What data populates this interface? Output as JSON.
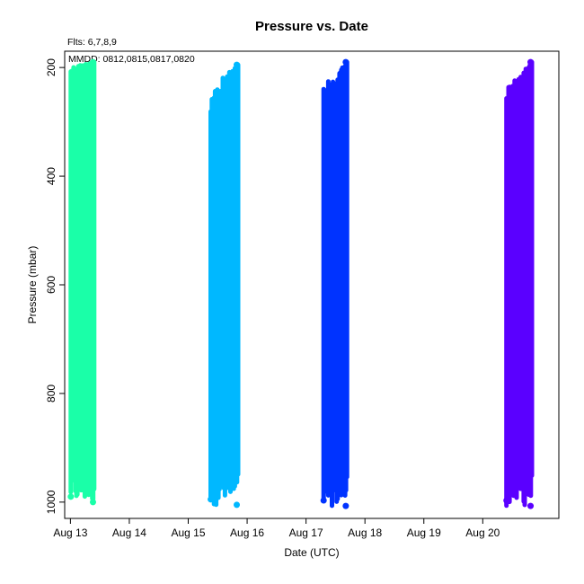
{
  "chart_data": {
    "type": "scatter",
    "title": "Pressure  vs. Date",
    "subtitle_flights": "Flts: 6,7,8,9",
    "legend_text": "MMDD: 0812,0815,0817,0820",
    "xlabel": "Date (UTC)",
    "ylabel": "Pressure (mbar)",
    "x_axis": {
      "units": "days",
      "range": [
        "Aug 12 21:40",
        "Aug 21 07:00"
      ],
      "tick_labels": [
        "Aug 13",
        "Aug 14",
        "Aug 15",
        "Aug 16",
        "Aug 17",
        "Aug 18",
        "Aug 19",
        "Aug 20"
      ]
    },
    "y_axis": {
      "inverted": true,
      "range": [
        1030,
        170
      ],
      "ticks": [
        200,
        400,
        600,
        800,
        1000
      ]
    },
    "grid": false,
    "series": [
      {
        "flight": "0812",
        "color": "#1affa8",
        "x_start": "Aug 13 00:10",
        "x_end": "Aug 13 09:40",
        "pressure_min": 190,
        "pressure_max": 1000
      },
      {
        "flight": "0815",
        "color": "#00b8ff",
        "x_start": "Aug 15 09:10",
        "x_end": "Aug 15 20:20",
        "pressure_min": 195,
        "pressure_max": 1005
      },
      {
        "flight": "0817",
        "color": "#0033ff",
        "x_start": "Aug 17 07:10",
        "x_end": "Aug 17 16:40",
        "pressure_min": 190,
        "pressure_max": 1007
      },
      {
        "flight": "0820",
        "color": "#5a00ff",
        "x_start": "Aug 20 09:40",
        "x_end": "Aug 20 20:00",
        "pressure_min": 190,
        "pressure_max": 1007
      }
    ]
  }
}
